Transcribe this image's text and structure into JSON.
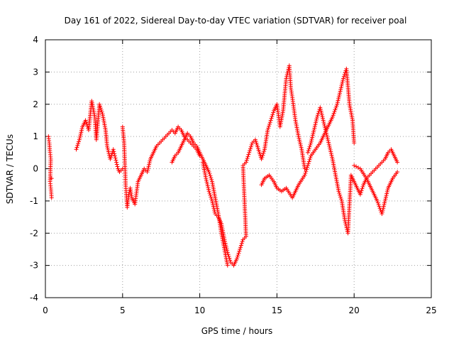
{
  "chart_data": {
    "type": "scatter",
    "title": "Day 161 of 2022, Sidereal Day-to-day VTEC variation (SDTVAR) for receiver poal",
    "xlabel": "GPS time / hours",
    "ylabel": "SDTVAR / TECUs",
    "xlim": [
      0,
      25
    ],
    "ylim": [
      -4,
      4
    ],
    "xticks": [
      "0",
      "5",
      "10",
      "15",
      "20",
      "25"
    ],
    "yticks": [
      "-4",
      "-3",
      "-2",
      "-1",
      "0",
      "1",
      "2",
      "3",
      "4"
    ],
    "grid": true,
    "marker": "+",
    "color": "#ff0000",
    "series": [
      {
        "name": "SDTVAR",
        "x": [
          0.2,
          0.25,
          0.3,
          0.35,
          0.3,
          0.35,
          0.4,
          0.4,
          2.0,
          2.2,
          2.4,
          2.6,
          2.8,
          3.0,
          3.2,
          3.3,
          3.5,
          3.7,
          3.9,
          4.0,
          4.2,
          4.4,
          4.5,
          4.6,
          4.7,
          4.8,
          5.0,
          5.0,
          5.1,
          5.2,
          5.3,
          5.4,
          5.5,
          5.6,
          5.8,
          6.0,
          6.2,
          6.4,
          6.6,
          6.8,
          7.0,
          7.2,
          7.4,
          7.6,
          7.8,
          8.0,
          8.2,
          8.4,
          8.6,
          8.8,
          9.0,
          9.2,
          9.4,
          9.6,
          9.8,
          10.0,
          8.2,
          8.4,
          8.6,
          8.8,
          9.0,
          9.2,
          9.4,
          9.6,
          9.8,
          10.0,
          10.2,
          10.4,
          10.6,
          10.8,
          11.0,
          11.2,
          11.4,
          11.6,
          11.8,
          10.2,
          10.4,
          10.6,
          10.8,
          11.0,
          11.2,
          11.4,
          11.6,
          11.8,
          12.0,
          12.2,
          12.4,
          12.6,
          12.8,
          13.0,
          12.8,
          13.0,
          13.2,
          13.4,
          13.6,
          14.0,
          14.2,
          14.4,
          14.6,
          14.8,
          15.0,
          15.2,
          15.4,
          15.6,
          15.8,
          15.9,
          16.0,
          16.2,
          16.4,
          16.6,
          16.8,
          14.0,
          14.2,
          14.5,
          14.8,
          15.0,
          15.3,
          15.6,
          16.0,
          16.4,
          16.8,
          17.0,
          17.2,
          17.5,
          17.8,
          18.0,
          18.3,
          18.6,
          18.9,
          19.1,
          19.3,
          19.5,
          19.7,
          19.9,
          20.0,
          17.0,
          17.2,
          17.4,
          17.6,
          17.8,
          18.0,
          18.2,
          18.4,
          18.6,
          18.8,
          19.0,
          19.2,
          19.4,
          19.6,
          19.8,
          20.0,
          20.2,
          20.4,
          20.6,
          20.8,
          21.0,
          21.2,
          21.4,
          21.6,
          21.8,
          22.0,
          22.2,
          22.4,
          22.6,
          22.8,
          20.0,
          20.4,
          20.8,
          21.2,
          21.5,
          21.8,
          22.2,
          22.5,
          22.8
        ],
        "y": [
          1.0,
          0.8,
          0.5,
          0.3,
          -0.4,
          -0.6,
          -0.9,
          -0.3,
          0.6,
          0.9,
          1.3,
          1.5,
          1.2,
          2.1,
          1.6,
          0.9,
          2.0,
          1.7,
          1.2,
          0.7,
          0.3,
          0.6,
          0.4,
          0.2,
          0.0,
          -0.1,
          0.0,
          1.3,
          0.8,
          -0.5,
          -1.2,
          -0.8,
          -0.6,
          -0.9,
          -1.1,
          -0.4,
          -0.2,
          0.0,
          -0.1,
          0.3,
          0.5,
          0.7,
          0.8,
          0.9,
          1.0,
          1.1,
          1.2,
          1.1,
          1.3,
          1.2,
          1.0,
          0.9,
          0.8,
          0.7,
          0.6,
          0.4,
          0.2,
          0.4,
          0.5,
          0.7,
          0.9,
          1.1,
          1.0,
          0.8,
          0.7,
          0.5,
          0.3,
          0.1,
          -0.1,
          -0.4,
          -0.9,
          -1.4,
          -2.0,
          -2.5,
          -3.0,
          0.2,
          -0.3,
          -0.7,
          -1.0,
          -1.4,
          -1.5,
          -1.7,
          -2.2,
          -2.6,
          -2.9,
          -3.0,
          -2.8,
          -2.5,
          -2.2,
          -2.1,
          0.1,
          0.2,
          0.5,
          0.8,
          0.9,
          0.3,
          0.6,
          1.2,
          1.5,
          1.8,
          2.0,
          1.3,
          1.8,
          2.8,
          3.2,
          2.5,
          2.2,
          1.5,
          1.0,
          0.6,
          0.0,
          -0.5,
          -0.3,
          -0.2,
          -0.4,
          -0.6,
          -0.7,
          -0.6,
          -0.9,
          -0.5,
          -0.2,
          0.1,
          0.4,
          0.6,
          0.8,
          1.0,
          1.3,
          1.6,
          2.0,
          2.4,
          2.8,
          3.1,
          2.0,
          1.5,
          0.8,
          0.5,
          0.8,
          1.2,
          1.6,
          1.9,
          1.5,
          1.1,
          0.7,
          0.3,
          -0.2,
          -0.7,
          -1.0,
          -1.6,
          -2.0,
          -0.2,
          -0.4,
          -0.6,
          -0.8,
          -0.5,
          -0.3,
          -0.2,
          -0.1,
          0.0,
          0.1,
          0.2,
          0.3,
          0.5,
          0.6,
          0.4,
          0.2,
          0.1,
          0.0,
          -0.3,
          -0.7,
          -1.0,
          -1.4,
          -0.6,
          -0.3,
          -0.1
        ]
      }
    ]
  }
}
